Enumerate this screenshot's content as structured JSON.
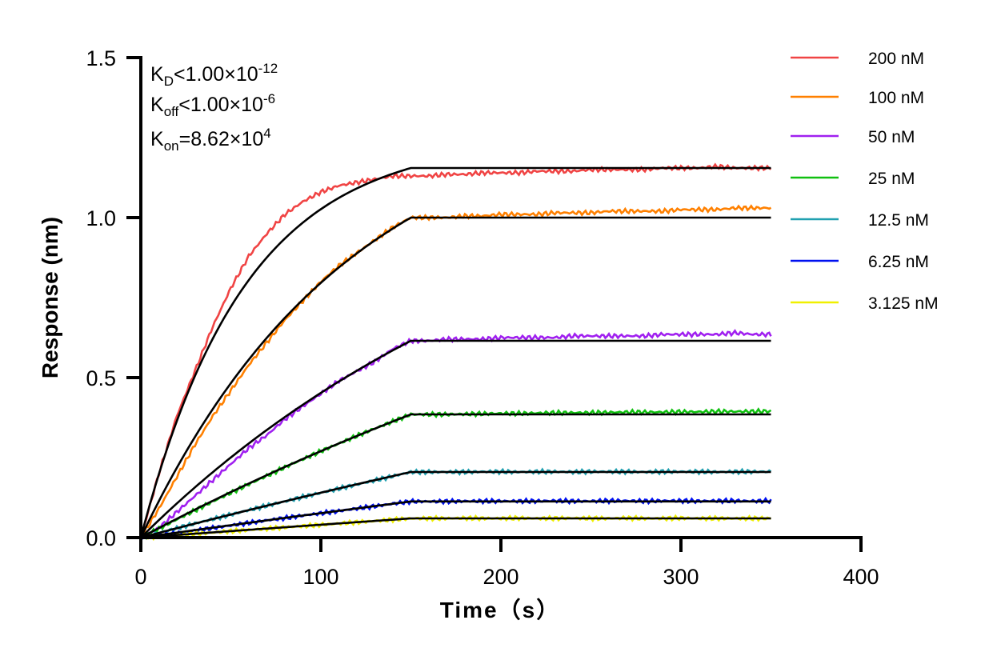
{
  "chart_data": {
    "type": "line",
    "title": "",
    "xlabel": "Time（s）",
    "ylabel": "Response (nm)",
    "xlim": [
      0,
      400
    ],
    "ylim": [
      0,
      1.5
    ],
    "xticks": [
      "0",
      "100",
      "200",
      "300",
      "400"
    ],
    "yticks": [
      "0.0",
      "0.5",
      "1.0",
      "1.5"
    ],
    "grid": false,
    "legend_placement": "right",
    "annotations": {
      "kd": {
        "sym": "K",
        "sub": "D",
        "rel": "<1.00×10",
        "exp": "-12"
      },
      "koff": {
        "sym": "K",
        "sub": "off",
        "rel": "<1.00×10",
        "exp": "-6"
      },
      "kon": {
        "sym": "K",
        "sub": "on",
        "rel": "=8.62×10",
        "exp": "4"
      }
    },
    "kon_value": 86200,
    "association_end_s": 150,
    "fit_color": "#000000",
    "x": [
      0,
      10,
      20,
      30,
      40,
      50,
      60,
      70,
      80,
      90,
      100,
      110,
      120,
      130,
      140,
      150,
      160,
      170,
      180,
      190,
      200,
      210,
      220,
      230,
      240,
      250,
      260,
      270,
      280,
      290,
      300,
      310,
      320,
      330,
      340,
      350
    ],
    "series": [
      {
        "name": "200 nM",
        "conc_nM": 200,
        "color": "#f04444",
        "fit_plateau": 1.155,
        "values": [
          0,
          0.2,
          0.38,
          0.52,
          0.66,
          0.78,
          0.88,
          0.95,
          1.01,
          1.05,
          1.08,
          1.1,
          1.11,
          1.12,
          1.13,
          1.13,
          1.13,
          1.135,
          1.135,
          1.14,
          1.14,
          1.14,
          1.145,
          1.145,
          1.145,
          1.15,
          1.15,
          1.15,
          1.15,
          1.155,
          1.155,
          1.155,
          1.16,
          1.155,
          1.155,
          1.155
        ]
      },
      {
        "name": "100 nM",
        "conc_nM": 100,
        "color": "#ff8000",
        "fit_plateau": 1.0,
        "values": [
          0,
          0.09,
          0.19,
          0.29,
          0.38,
          0.46,
          0.54,
          0.61,
          0.68,
          0.74,
          0.8,
          0.85,
          0.89,
          0.93,
          0.97,
          1.0,
          1.0,
          1.0,
          1.005,
          1.005,
          1.01,
          1.01,
          1.01,
          1.015,
          1.015,
          1.015,
          1.02,
          1.02,
          1.02,
          1.02,
          1.025,
          1.025,
          1.025,
          1.03,
          1.03,
          1.03
        ]
      },
      {
        "name": "50 nM",
        "conc_nM": 50,
        "color": "#a020f0",
        "fit_plateau": 0.615,
        "values": [
          0,
          0.03,
          0.08,
          0.13,
          0.18,
          0.23,
          0.28,
          0.32,
          0.37,
          0.41,
          0.45,
          0.49,
          0.52,
          0.55,
          0.59,
          0.615,
          0.615,
          0.62,
          0.62,
          0.62,
          0.625,
          0.625,
          0.625,
          0.625,
          0.63,
          0.63,
          0.63,
          0.63,
          0.63,
          0.635,
          0.635,
          0.635,
          0.635,
          0.64,
          0.635,
          0.635
        ]
      },
      {
        "name": "25 nM",
        "conc_nM": 25,
        "color": "#10c010",
        "fit_plateau": 0.385,
        "values": [
          0,
          0.028,
          0.057,
          0.085,
          0.113,
          0.14,
          0.167,
          0.193,
          0.22,
          0.245,
          0.27,
          0.294,
          0.318,
          0.341,
          0.363,
          0.385,
          0.385,
          0.385,
          0.386,
          0.387,
          0.388,
          0.388,
          0.389,
          0.39,
          0.39,
          0.39,
          0.391,
          0.392,
          0.392,
          0.392,
          0.393,
          0.393,
          0.394,
          0.394,
          0.394,
          0.395
        ]
      },
      {
        "name": "12.5 nM",
        "conc_nM": 12.5,
        "color": "#20a0b0",
        "fit_plateau": 0.205,
        "values": [
          0,
          0.015,
          0.029,
          0.044,
          0.058,
          0.072,
          0.086,
          0.1,
          0.113,
          0.127,
          0.14,
          0.153,
          0.166,
          0.179,
          0.192,
          0.205,
          0.205,
          0.205,
          0.205,
          0.206,
          0.206,
          0.205,
          0.206,
          0.206,
          0.205,
          0.206,
          0.206,
          0.206,
          0.205,
          0.206,
          0.206,
          0.206,
          0.205,
          0.206,
          0.206,
          0.206
        ]
      },
      {
        "name": "6.25 nM",
        "conc_nM": 6.25,
        "color": "#0010f0",
        "fit_plateau": 0.113,
        "values": [
          0,
          0.006,
          0.014,
          0.022,
          0.03,
          0.038,
          0.046,
          0.054,
          0.061,
          0.069,
          0.076,
          0.083,
          0.091,
          0.098,
          0.106,
          0.113,
          0.113,
          0.113,
          0.114,
          0.114,
          0.114,
          0.114,
          0.114,
          0.115,
          0.114,
          0.114,
          0.115,
          0.115,
          0.114,
          0.115,
          0.115,
          0.114,
          0.115,
          0.115,
          0.114,
          0.115
        ]
      },
      {
        "name": "3.125 nM",
        "conc_nM": 3.125,
        "color": "#f0f000",
        "fit_plateau": 0.06,
        "values": [
          0,
          0.004,
          0.008,
          0.012,
          0.016,
          0.02,
          0.024,
          0.028,
          0.032,
          0.036,
          0.04,
          0.044,
          0.048,
          0.052,
          0.056,
          0.06,
          0.06,
          0.06,
          0.061,
          0.06,
          0.06,
          0.061,
          0.06,
          0.06,
          0.061,
          0.06,
          0.06,
          0.061,
          0.06,
          0.06,
          0.061,
          0.06,
          0.06,
          0.06,
          0.06,
          0.06
        ]
      }
    ]
  }
}
